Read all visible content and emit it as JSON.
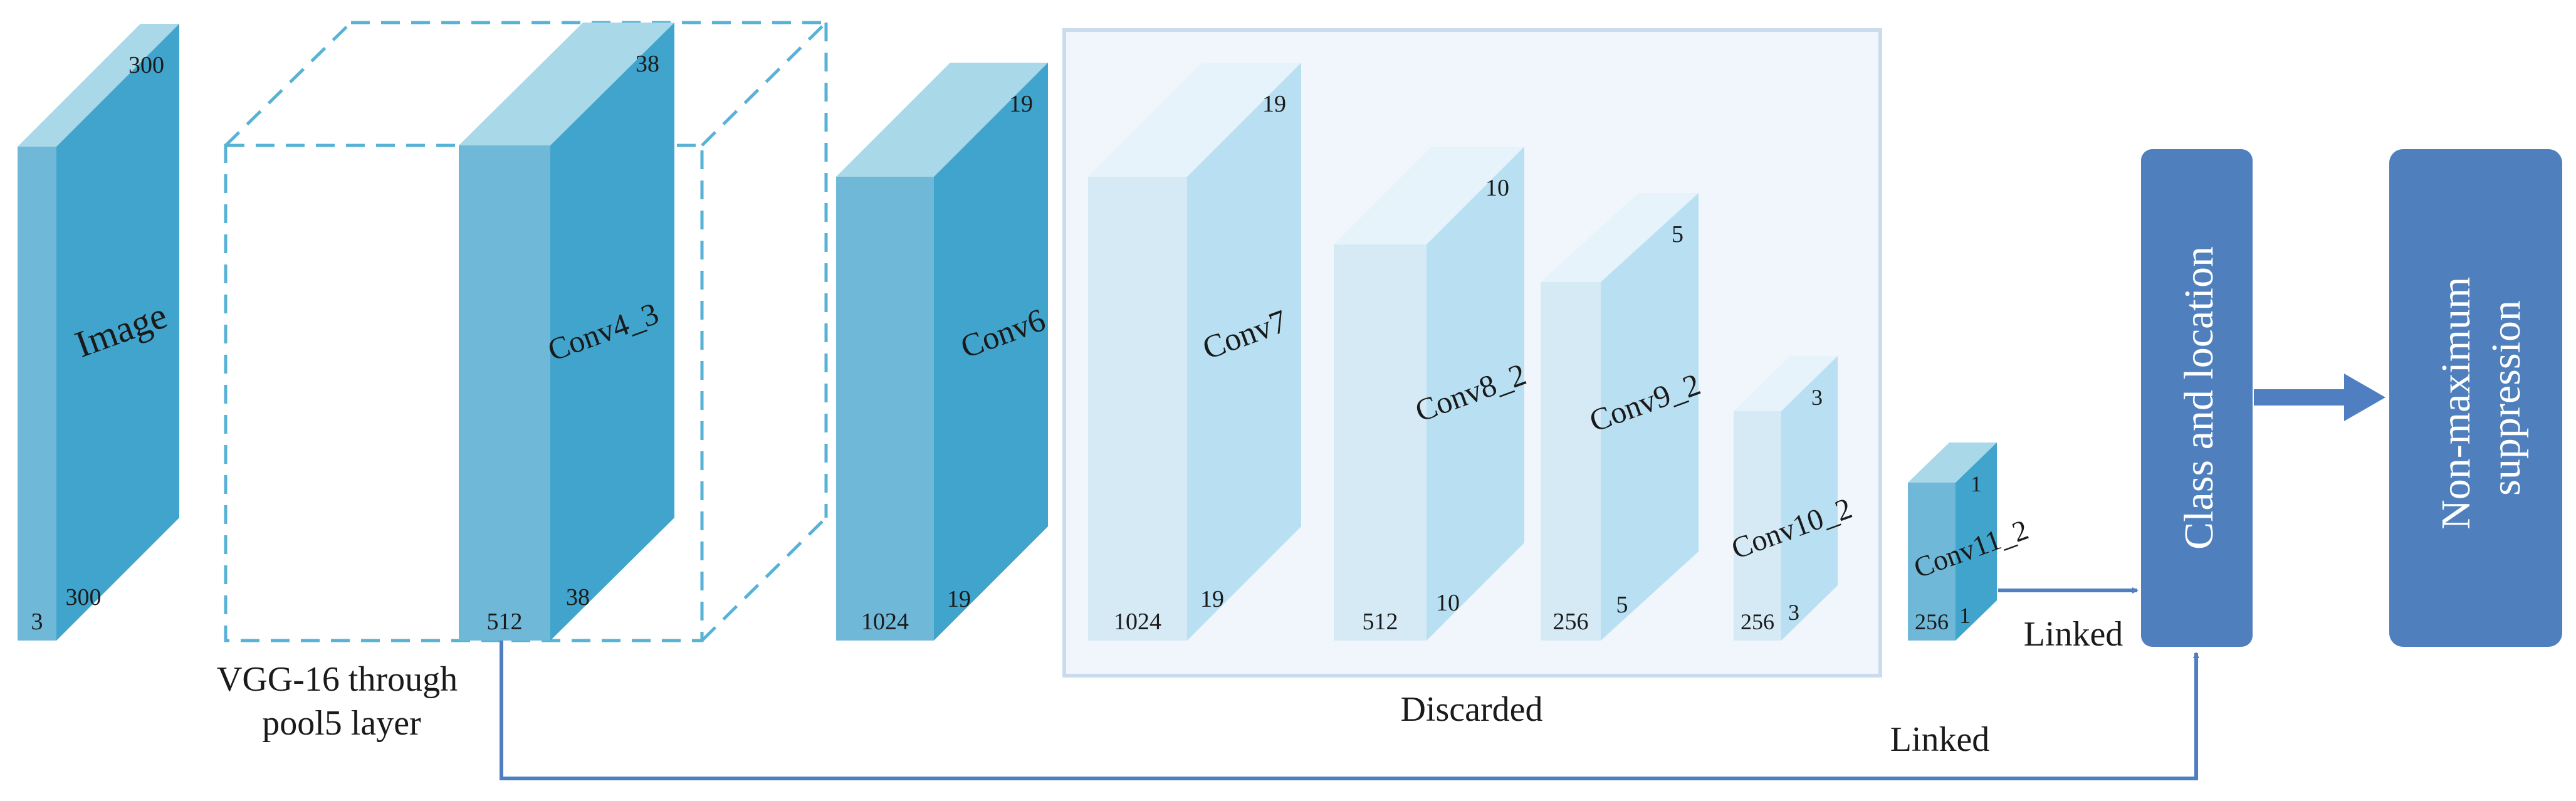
{
  "colors": {
    "front_dark": "#6fb8d8",
    "side_dark": "#40a4cc",
    "top_dark": "#a9d8e8",
    "front_light": "#d6eaf6",
    "side_light": "#b9e0f2",
    "top_light": "#e6f3fa",
    "discarded_bg": "#f0f6fb",
    "discarded_border": "#c9dcee",
    "dashed_outline": "#58b2d6",
    "arrow_blue": "#4f7fc0",
    "box_blue": "#4f80bd"
  },
  "blocks": {
    "image": {
      "label": "Image",
      "dim_top": "300",
      "dim_side": "300",
      "dim_front": "3"
    },
    "conv4_3": {
      "label": "Conv4_3",
      "dim_top": "38",
      "dim_side": "38",
      "dim_front": "512"
    },
    "conv6": {
      "label": "Conv6",
      "dim_top": "19",
      "dim_side": "19",
      "dim_front": "1024"
    },
    "conv7": {
      "label": "Conv7",
      "dim_top": "19",
      "dim_side": "19",
      "dim_front": "1024"
    },
    "conv8_2": {
      "label": "Conv8_2",
      "dim_top": "10",
      "dim_side": "10",
      "dim_front": "512"
    },
    "conv9_2": {
      "label": "Conv9_2",
      "dim_top": "5",
      "dim_side": "5",
      "dim_front": "256"
    },
    "conv10_2": {
      "label": "Conv10_2",
      "dim_top": "3",
      "dim_side": "3",
      "dim_front": "256"
    },
    "conv11_2": {
      "label": "Conv11_2",
      "dim_top": "1",
      "dim_side": "1",
      "dim_front": "256"
    }
  },
  "vgg_label_line1": "VGG-16 through",
  "vgg_label_line2": "pool5 layer",
  "discarded_label": "Discarded",
  "linked_label_1": "Linked",
  "linked_label_2": "Linked",
  "class_location_label": "Class and location",
  "nms_label_line1": "Non-maximum",
  "nms_label_line2": "suppression"
}
